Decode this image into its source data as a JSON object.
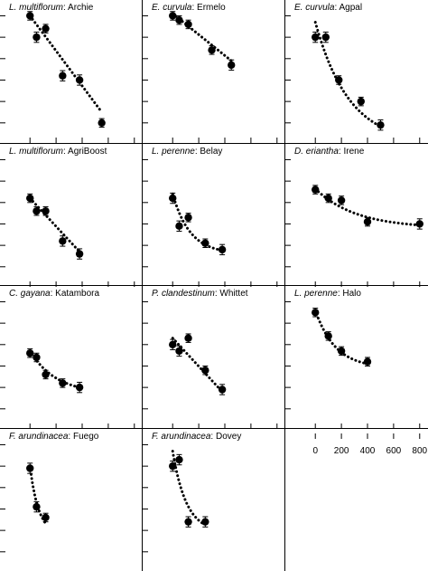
{
  "chart_data": {
    "type": "scatter",
    "layout": "grid",
    "shared_x_ticks": [
      "0",
      "200",
      "400",
      "600",
      "800"
    ],
    "xlim": [
      -50,
      850
    ],
    "ylim": [
      0.2,
      3.2
    ],
    "style": {
      "marker_color": "#000000",
      "trend_line": "dotted",
      "error_bars": true,
      "panel_grid_lines": true
    },
    "panels": [
      {
        "species": "L. multiflorum",
        "cultivar": "Archie",
        "x": [
          0,
          50,
          120,
          250,
          380,
          550
        ],
        "y": [
          3.0,
          2.5,
          2.7,
          1.6,
          1.5,
          0.5
        ],
        "err": [
          0.1,
          0.12,
          0.1,
          0.12,
          0.12,
          0.1
        ],
        "fit": {
          "kind": "linear",
          "from": 0,
          "to": 550,
          "y0": 3.0,
          "y1": 0.75
        }
      },
      {
        "species": "E. curvula",
        "cultivar": "Ermelo",
        "x": [
          0,
          50,
          120,
          300,
          450
        ],
        "y": [
          3.0,
          2.9,
          2.8,
          2.2,
          1.85
        ],
        "err": [
          0.1,
          0.1,
          0.1,
          0.1,
          0.12
        ],
        "fit": {
          "kind": "linear",
          "from": 0,
          "to": 450,
          "y0": 3.05,
          "y1": 1.95
        }
      },
      {
        "species": "E. curvula",
        "cultivar": "Agpal",
        "x": [
          0,
          80,
          180,
          350,
          500
        ],
        "y": [
          2.5,
          2.5,
          1.5,
          1.0,
          0.45
        ],
        "err": [
          0.12,
          0.12,
          0.1,
          0.1,
          0.12
        ],
        "fit": {
          "kind": "exp",
          "from": 0,
          "to": 500,
          "a": 2.85,
          "b": 0.00385
        }
      },
      {
        "species": "L. multiflorum",
        "cultivar": "AgriBoost",
        "x": [
          0,
          50,
          120,
          250,
          380
        ],
        "y": [
          2.1,
          1.8,
          1.8,
          1.1,
          0.8
        ],
        "err": [
          0.1,
          0.1,
          0.1,
          0.12,
          0.12
        ],
        "fit": {
          "kind": "linear",
          "from": 0,
          "to": 380,
          "y0": 2.1,
          "y1": 0.85
        }
      },
      {
        "species": "L. perenne",
        "cultivar": "Belay",
        "x": [
          0,
          50,
          120,
          250,
          380
        ],
        "y": [
          2.1,
          1.45,
          1.65,
          1.05,
          0.9
        ],
        "err": [
          0.12,
          0.12,
          0.1,
          0.1,
          0.12
        ],
        "fit": {
          "kind": "exp_offset",
          "from": 0,
          "to": 380,
          "c": 0.8,
          "a": 1.4,
          "b": 0.0075
        }
      },
      {
        "species": "D. eriantha",
        "cultivar": "Irene",
        "x": [
          0,
          100,
          200,
          400,
          800
        ],
        "y": [
          2.3,
          2.1,
          2.05,
          1.55,
          1.5
        ],
        "err": [
          0.1,
          0.1,
          0.1,
          0.1,
          0.12
        ],
        "fit": {
          "kind": "exp_offset",
          "from": 0,
          "to": 800,
          "c": 1.4,
          "a": 0.92,
          "b": 0.0032
        }
      },
      {
        "species": "C. gayana",
        "cultivar": "Katambora",
        "x": [
          0,
          50,
          120,
          250,
          380
        ],
        "y": [
          1.8,
          1.7,
          1.3,
          1.1,
          1.0
        ],
        "err": [
          0.1,
          0.1,
          0.1,
          0.1,
          0.12
        ],
        "fit": {
          "kind": "exp_offset",
          "from": 0,
          "to": 380,
          "c": 0.85,
          "a": 1.0,
          "b": 0.005
        }
      },
      {
        "species": "P. clandestinum",
        "cultivar": "Whittet",
        "x": [
          0,
          50,
          120,
          250,
          380
        ],
        "y": [
          2.0,
          1.85,
          2.15,
          1.4,
          0.95
        ],
        "err": [
          0.12,
          0.12,
          0.1,
          0.1,
          0.12
        ],
        "fit": {
          "kind": "linear",
          "from": 0,
          "to": 380,
          "y0": 2.15,
          "y1": 0.9
        }
      },
      {
        "species": "L. perenne",
        "cultivar": "Halo",
        "x": [
          0,
          100,
          200,
          400
        ],
        "y": [
          2.75,
          2.2,
          1.85,
          1.6
        ],
        "err": [
          0.1,
          0.1,
          0.1,
          0.1
        ],
        "fit": {
          "kind": "exp_offset",
          "from": 0,
          "to": 400,
          "c": 1.45,
          "a": 1.35,
          "b": 0.0065
        }
      },
      {
        "species": "F. arundinacea",
        "cultivar": "Fuego",
        "x": [
          0,
          50,
          120
        ],
        "y": [
          2.45,
          1.55,
          1.3
        ],
        "err": [
          0.12,
          0.12,
          0.1
        ],
        "fit": {
          "kind": "exp_offset",
          "from": 0,
          "to": 120,
          "c": 0.9,
          "a": 1.6,
          "b": 0.015
        }
      },
      {
        "species": "F. arundinacea",
        "cultivar": "Dovey",
        "x": [
          0,
          50,
          120,
          250
        ],
        "y": [
          2.5,
          2.65,
          1.2,
          1.2
        ],
        "err": [
          0.12,
          0.12,
          0.12,
          0.12
        ],
        "fit": {
          "kind": "exp_offset",
          "from": 0,
          "to": 250,
          "c": 0.95,
          "a": 1.9,
          "b": 0.0095
        }
      }
    ]
  }
}
